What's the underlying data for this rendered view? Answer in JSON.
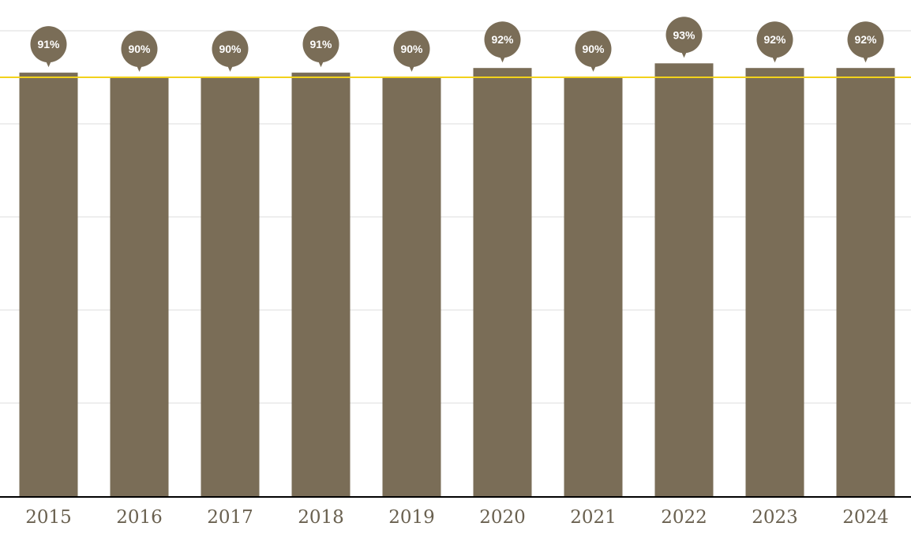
{
  "chart_data": {
    "type": "bar",
    "categories": [
      "2015",
      "2016",
      "2017",
      "2018",
      "2019",
      "2020",
      "2021",
      "2022",
      "2023",
      "2024"
    ],
    "values": [
      91,
      90,
      90,
      91,
      90,
      92,
      90,
      93,
      92,
      92
    ],
    "data_labels": [
      "91%",
      "90%",
      "90%",
      "91%",
      "90%",
      "92%",
      "90%",
      "93%",
      "92%",
      "92%"
    ],
    "ylim": [
      0,
      100
    ],
    "y_tick_values": [
      0,
      20,
      40,
      60,
      80,
      100
    ],
    "reference_line": {
      "value": 90
    },
    "grid": true,
    "colors": {
      "bar": "#7a6d57",
      "label_marker": "#7a6d57",
      "label_text": "#ffffff",
      "reference_line": "#f2d21c",
      "grid": "#dcdcdc",
      "axis": "#000000",
      "tick_text": "#6a6150"
    }
  }
}
